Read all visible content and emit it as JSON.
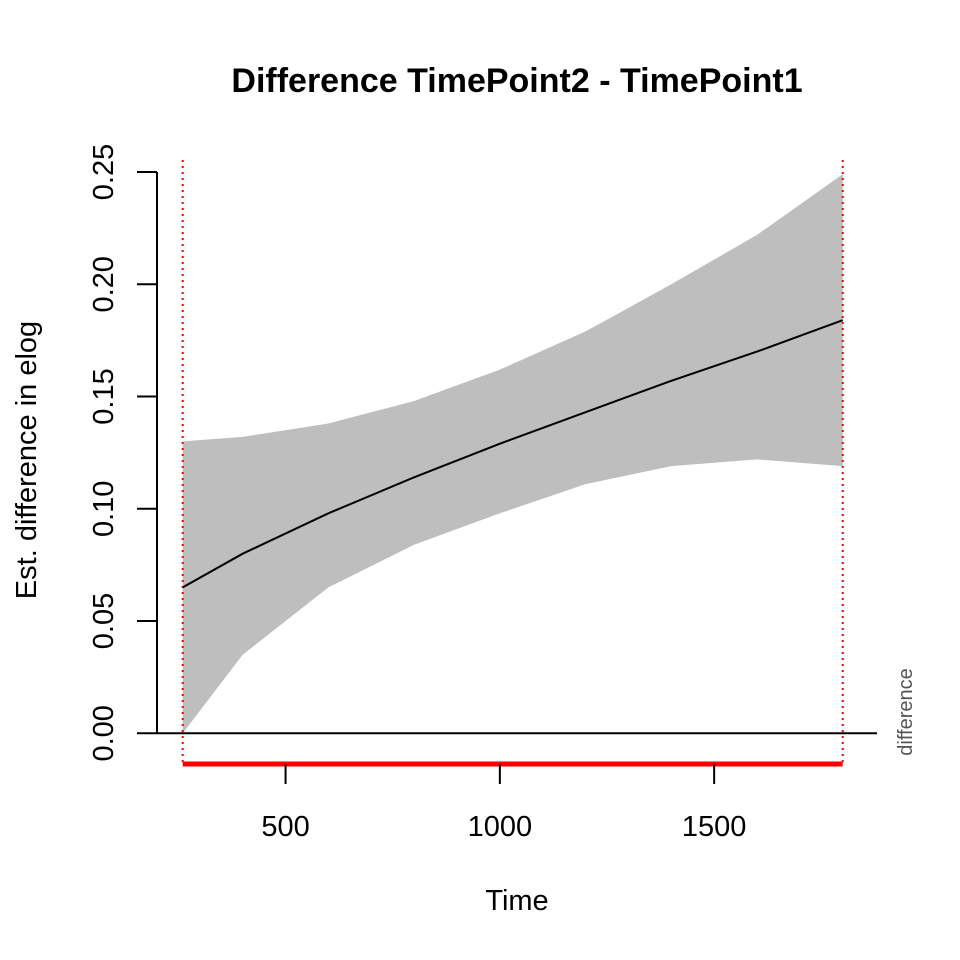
{
  "chart_data": {
    "type": "line",
    "title": "Difference TimePoint2 - TimePoint1",
    "xlabel": "Time",
    "ylabel": "Est. difference in elog",
    "side_label": "difference",
    "xlim": [
      200,
      1880
    ],
    "ylim": [
      -0.011,
      0.25
    ],
    "x_ticks": [
      {
        "value": 500,
        "label": "500"
      },
      {
        "value": 1000,
        "label": "1000"
      },
      {
        "value": 1500,
        "label": "1500"
      }
    ],
    "y_ticks": [
      {
        "value": 0.0,
        "label": "0.00"
      },
      {
        "value": 0.05,
        "label": "0.05"
      },
      {
        "value": 0.1,
        "label": "0.10"
      },
      {
        "value": 0.15,
        "label": "0.15"
      },
      {
        "value": 0.2,
        "label": "0.20"
      },
      {
        "value": 0.25,
        "label": "0.25"
      }
    ],
    "series": [
      {
        "x": [
          260,
          400,
          600,
          800,
          1000,
          1200,
          1400,
          1600,
          1800
        ],
        "y": [
          0.065,
          0.08,
          0.098,
          0.114,
          0.129,
          0.143,
          0.157,
          0.17,
          0.184
        ],
        "color": "#000000"
      }
    ],
    "confidence_band": {
      "x": [
        260,
        400,
        600,
        800,
        1000,
        1200,
        1400,
        1600,
        1800
      ],
      "lower": [
        0.0,
        0.035,
        0.065,
        0.084,
        0.098,
        0.111,
        0.119,
        0.122,
        0.119
      ],
      "upper": [
        0.13,
        0.132,
        0.138,
        0.148,
        0.162,
        0.179,
        0.2,
        0.222,
        0.249
      ],
      "color": "#bebebe"
    },
    "significance_region": {
      "x_start": 260,
      "x_end": 1800,
      "color": "#ff0000"
    }
  }
}
